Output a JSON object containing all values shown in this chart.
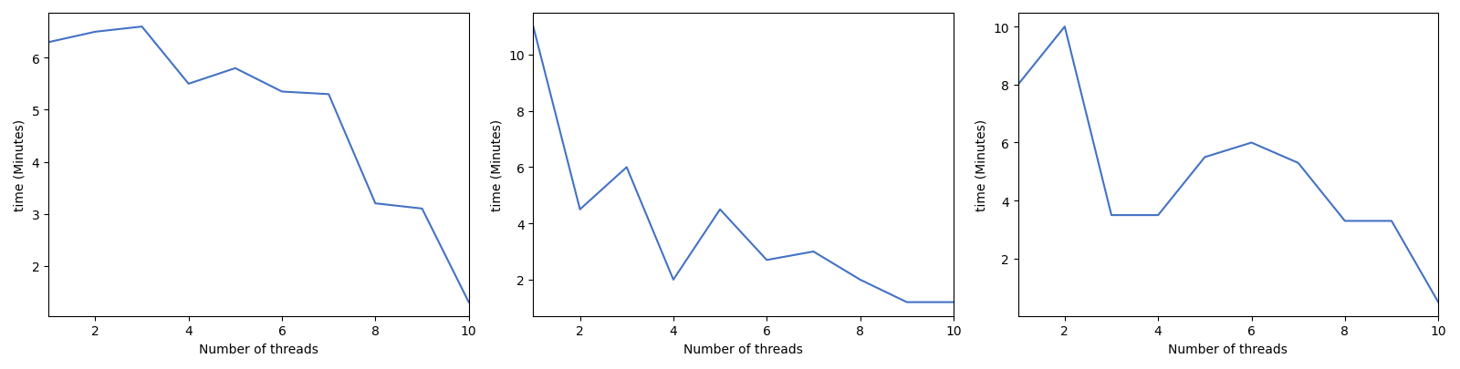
{
  "charts": [
    {
      "x": [
        1,
        2,
        3,
        4,
        5,
        6,
        7,
        8,
        9,
        10
      ],
      "y": [
        6.3,
        6.5,
        6.6,
        5.5,
        5.8,
        5.35,
        5.3,
        3.2,
        3.1,
        1.3
      ],
      "ylabel": "time (Minutes)",
      "xlabel": "Number of threads",
      "ylim_auto": true
    },
    {
      "x": [
        1,
        2,
        3,
        4,
        5,
        6,
        7,
        8,
        9,
        10
      ],
      "y": [
        11.0,
        4.5,
        6.0,
        2.0,
        4.5,
        2.7,
        3.0,
        2.0,
        1.2,
        1.2
      ],
      "ylabel": "time (Minutes)",
      "xlabel": "Number of threads",
      "ylim_auto": true
    },
    {
      "x": [
        1,
        2,
        3,
        4,
        5,
        6,
        7,
        8,
        9,
        10
      ],
      "y": [
        8.0,
        10.0,
        3.5,
        3.5,
        5.5,
        6.0,
        5.3,
        3.3,
        3.3,
        0.5
      ],
      "ylabel": "time (Minutes)",
      "xlabel": "Number of threads",
      "ylim_auto": true
    }
  ],
  "line_color": "#4472c4",
  "fig_width": 16.0,
  "fig_height": 4.06,
  "dpi": 100
}
